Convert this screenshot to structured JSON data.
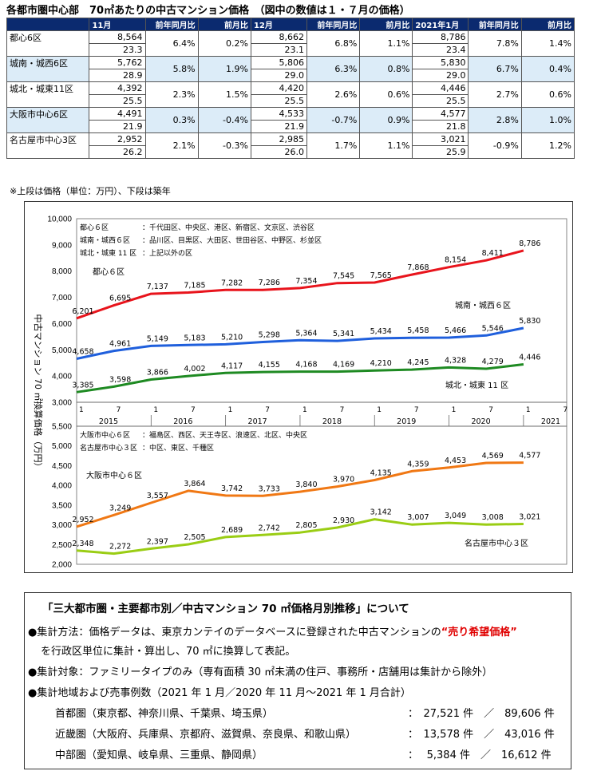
{
  "title": "各都市圏中心部　70㎡あたりの中古マンション価格　（図中の数値は１・７月の価格）",
  "table": {
    "months": [
      "11月",
      "12月",
      "2021年1月"
    ],
    "sub_yoy": "前年同月比",
    "sub_mom": "前月比",
    "rows": [
      {
        "name": "都心6区",
        "shade": false,
        "cells": [
          [
            "8,564",
            "23.3",
            "6.4%",
            "0.2%"
          ],
          [
            "8,662",
            "23.1",
            "6.8%",
            "1.1%"
          ],
          [
            "8,786",
            "23.4",
            "7.8%",
            "1.4%"
          ]
        ]
      },
      {
        "name": "城南・城西6区",
        "shade": true,
        "cells": [
          [
            "5,762",
            "28.9",
            "5.8%",
            "1.9%"
          ],
          [
            "5,806",
            "29.0",
            "6.3%",
            "0.8%"
          ],
          [
            "5,830",
            "29.0",
            "6.7%",
            "0.4%"
          ]
        ]
      },
      {
        "name": "城北・城東11区",
        "shade": false,
        "cells": [
          [
            "4,392",
            "25.5",
            "2.3%",
            "1.5%"
          ],
          [
            "4,420",
            "25.5",
            "2.6%",
            "0.6%"
          ],
          [
            "4,446",
            "25.5",
            "2.7%",
            "0.6%"
          ]
        ]
      },
      {
        "name": "大阪市中心6区",
        "shade": true,
        "cells": [
          [
            "4,491",
            "21.9",
            "0.3%",
            "-0.4%"
          ],
          [
            "4,533",
            "21.9",
            "-0.7%",
            "0.9%"
          ],
          [
            "4,577",
            "21.8",
            "2.8%",
            "1.0%"
          ]
        ]
      },
      {
        "name": "名古屋市中心3区",
        "shade": false,
        "cells": [
          [
            "2,952",
            "26.2",
            "2.1%",
            "-0.3%"
          ],
          [
            "2,985",
            "26.0",
            "1.7%",
            "1.1%"
          ],
          [
            "3,021",
            "25.9",
            "-0.9%",
            "1.2%"
          ]
        ]
      }
    ],
    "note": "※上段は価格（単位：万円）、下段は築年"
  },
  "chart_data": {
    "type": "line",
    "ylabel": "中古マンション 70 ㎡換算価格（万円）",
    "x_ticks": [
      "1",
      "7",
      "1",
      "7",
      "1",
      "7",
      "1",
      "7",
      "1",
      "7",
      "1",
      "7",
      "1",
      "7"
    ],
    "years": [
      "2015",
      "2016",
      "2017",
      "2018",
      "2019",
      "2020",
      "2021"
    ],
    "top": {
      "ylim": [
        3000,
        10000
      ],
      "yticks": [
        "3,000",
        "4,000",
        "5,000",
        "6,000",
        "7,000",
        "8,000",
        "9,000",
        "10,000"
      ],
      "legend": [
        [
          "都心６区",
          "：千代田区、中央区、港区、新宿区、文京区、渋谷区"
        ],
        [
          "城南・城西６区",
          "：品川区、目黒区、大田区、世田谷区、中野区、杉並区"
        ],
        [
          "城北・城東 11 区",
          "：上記以外の区"
        ]
      ],
      "series": [
        {
          "name": "都心６区",
          "color": "#e8141c",
          "x": [
            "2015-01",
            "2015-07",
            "2016-01",
            "2016-07",
            "2017-01",
            "2017-07",
            "2018-01",
            "2018-07",
            "2019-01",
            "2019-07",
            "2020-01",
            "2020-07",
            "2021-01"
          ],
          "values": [
            6201,
            6695,
            7137,
            7185,
            7282,
            7286,
            7354,
            7545,
            7565,
            7868,
            8154,
            8411,
            8786
          ],
          "labels": [
            "6,201",
            "6,695",
            "7,137",
            "7,185",
            "7,282",
            "7,286",
            "7,354",
            "7,545",
            "7,565",
            "7,868",
            "8,154",
            "8,411",
            "8,786"
          ]
        },
        {
          "name": "城南・城西６区",
          "color": "#1f5fdc",
          "x": [
            "2015-01",
            "2015-07",
            "2016-01",
            "2016-07",
            "2017-01",
            "2017-07",
            "2018-01",
            "2018-07",
            "2019-01",
            "2019-07",
            "2020-01",
            "2020-07",
            "2021-01"
          ],
          "values": [
            4658,
            4961,
            5149,
            5183,
            5210,
            5298,
            5364,
            5341,
            5434,
            5458,
            5466,
            5546,
            5830
          ],
          "labels": [
            "4,658",
            "4,961",
            "5,149",
            "5,183",
            "5,210",
            "5,298",
            "5,364",
            "5,341",
            "5,434",
            "5,458",
            "5,466",
            "5,546",
            "5,830"
          ]
        },
        {
          "name": "城北・城東 11 区",
          "color": "#1e8a22",
          "x": [
            "2015-01",
            "2015-07",
            "2016-01",
            "2016-07",
            "2017-01",
            "2017-07",
            "2018-01",
            "2018-07",
            "2019-01",
            "2019-07",
            "2020-01",
            "2020-07",
            "2021-01"
          ],
          "values": [
            3385,
            3598,
            3866,
            4002,
            4117,
            4155,
            4168,
            4169,
            4210,
            4245,
            4328,
            4279,
            4446
          ],
          "labels": [
            "3,385",
            "3,598",
            "3,866",
            "4,002",
            "4,117",
            "4,155",
            "4,168",
            "4,169",
            "4,210",
            "4,245",
            "4,328",
            "4,279",
            "4,446"
          ]
        }
      ]
    },
    "bottom": {
      "ylim": [
        2000,
        5500
      ],
      "yticks": [
        "2,000",
        "2,500",
        "3,000",
        "3,500",
        "4,000",
        "4,500",
        "5,000",
        "5,500"
      ],
      "legend": [
        [
          "大阪市中心６区",
          "：福島区、西区、天王寺区、浪速区、北区、中央区"
        ],
        [
          "名古屋市中心３区",
          "：中区、東区、千種区"
        ]
      ],
      "series": [
        {
          "name": "大阪市中心６区",
          "color": "#f07814",
          "x": [
            "2015-01",
            "2015-07",
            "2016-01",
            "2016-07",
            "2017-01",
            "2017-07",
            "2018-01",
            "2018-07",
            "2019-01",
            "2019-07",
            "2020-01",
            "2020-07",
            "2021-01"
          ],
          "values": [
            2952,
            3249,
            3557,
            3864,
            3742,
            3733,
            3840,
            3970,
            4135,
            4359,
            4453,
            4569,
            4577
          ],
          "labels": [
            "2,952",
            "3,249",
            "3,557",
            "3,864",
            "3,742",
            "3,733",
            "3,840",
            "3,970",
            "4,135",
            "4,359",
            "4,453",
            "4,569",
            "4,577"
          ]
        },
        {
          "name": "名古屋市中心３区",
          "color": "#9acd14",
          "x": [
            "2015-01",
            "2015-07",
            "2016-01",
            "2016-07",
            "2017-01",
            "2017-07",
            "2018-01",
            "2018-07",
            "2019-01",
            "2019-07",
            "2020-01",
            "2020-07",
            "2021-01"
          ],
          "values": [
            2348,
            2272,
            2397,
            2505,
            2689,
            2742,
            2805,
            2930,
            3142,
            3007,
            3049,
            3008,
            3021
          ],
          "labels": [
            "2,348",
            "2,272",
            "2,397",
            "2,505",
            "2,689",
            "2,742",
            "2,805",
            "2,930",
            "3,142",
            "3,007",
            "3,049",
            "3,008",
            "3,021"
          ]
        }
      ]
    }
  },
  "info": {
    "heading": "「三大都市圏・主要都市別／中古マンション 70 ㎡価格月別推移」について",
    "method_pre": "●集計方法：価格データは、東京カンテイのデータベースに登録された中古マンションの",
    "method_red": "“売り希望価格”",
    "method_post": "を行政区単位に集計・算出し、70 ㎡に換算して表記。",
    "target": "●集計対象：ファミリータイプのみ（専有面積 30 ㎡未満の住戸、事務所・店舗用は集計から除外）",
    "area": "●集計地域および売事例数（2021 年 1 月／2020 年 11 月～2021 年 1 月合計）",
    "regions": [
      {
        "name": "首都圏（東京都、神奈川県、千葉県、埼玉県）",
        "counts": "：　27,521 件　／　89,606 件"
      },
      {
        "name": "近畿圏（大阪府、兵庫県、京都府、滋賀県、奈良県、和歌山県）",
        "counts": "：　13,578 件　／　43,016 件"
      },
      {
        "name": "中部圏（愛知県、岐阜県、三重県、静岡県）",
        "counts": "：　 5,384 件　／　16,612 件"
      }
    ]
  }
}
